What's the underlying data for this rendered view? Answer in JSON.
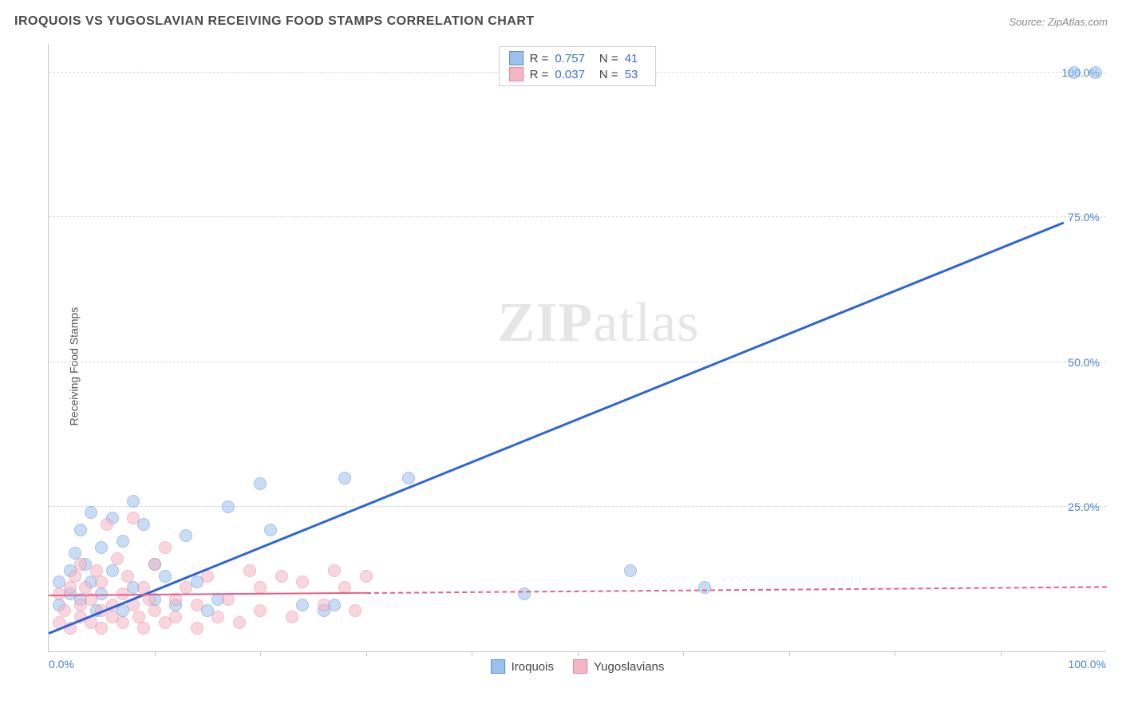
{
  "header": {
    "title": "IROQUOIS VS YUGOSLAVIAN RECEIVING FOOD STAMPS CORRELATION CHART",
    "source": "Source: ZipAtlas.com"
  },
  "watermark": {
    "bold": "ZIP",
    "rest": "atlas"
  },
  "chart": {
    "type": "scatter",
    "ylabel": "Receiving Food Stamps",
    "xlim": [
      0,
      100
    ],
    "ylim": [
      0,
      105
    ],
    "background_color": "#ffffff",
    "grid_color": "#d8d8d8",
    "yticks": [
      {
        "value": 25,
        "label": "25.0%"
      },
      {
        "value": 50,
        "label": "50.0%"
      },
      {
        "value": 75,
        "label": "75.0%"
      },
      {
        "value": 100,
        "label": "100.0%"
      }
    ],
    "xticks_minor": [
      10,
      20,
      30,
      40,
      50,
      60,
      70,
      80,
      90
    ],
    "xticks_labeled": [
      {
        "value": 0,
        "label": "0.0%"
      },
      {
        "value": 100,
        "label": "100.0%"
      }
    ],
    "marker_radius": 8,
    "marker_opacity": 0.55,
    "series": [
      {
        "name": "Iroquois",
        "color_fill": "#9cc0ee",
        "color_stroke": "#5a8fd6",
        "R": "0.757",
        "N": "41",
        "trend": {
          "x1": 0,
          "y1": 3,
          "x2": 96,
          "y2": 74,
          "color": "#2b65d9",
          "width": 2.5,
          "solid_until_x": 96
        },
        "points": [
          [
            1,
            8
          ],
          [
            1,
            12
          ],
          [
            2,
            14
          ],
          [
            2,
            10
          ],
          [
            2.5,
            17
          ],
          [
            3,
            9
          ],
          [
            3,
            21
          ],
          [
            3.5,
            15
          ],
          [
            4,
            24
          ],
          [
            4,
            12
          ],
          [
            4.5,
            7
          ],
          [
            5,
            18
          ],
          [
            5,
            10
          ],
          [
            6,
            23
          ],
          [
            6,
            14
          ],
          [
            7,
            19
          ],
          [
            7,
            7
          ],
          [
            8,
            26
          ],
          [
            8,
            11
          ],
          [
            9,
            22
          ],
          [
            10,
            9
          ],
          [
            10,
            15
          ],
          [
            11,
            13
          ],
          [
            12,
            8
          ],
          [
            13,
            20
          ],
          [
            14,
            12
          ],
          [
            15,
            7
          ],
          [
            16,
            9
          ],
          [
            17,
            25
          ],
          [
            20,
            29
          ],
          [
            21,
            21
          ],
          [
            24,
            8
          ],
          [
            26,
            7
          ],
          [
            27,
            8
          ],
          [
            28,
            30
          ],
          [
            34,
            30
          ],
          [
            45,
            10
          ],
          [
            55,
            14
          ],
          [
            62,
            11
          ],
          [
            97,
            100
          ],
          [
            99,
            100
          ]
        ]
      },
      {
        "name": "Yugoslavians",
        "color_fill": "#f5b6c4",
        "color_stroke": "#e583a0",
        "R": "0.037",
        "N": "53",
        "trend": {
          "x1": 0,
          "y1": 9.5,
          "x2": 100,
          "y2": 11,
          "color": "#e85f87",
          "width": 2,
          "solid_until_x": 30
        },
        "points": [
          [
            1,
            5
          ],
          [
            1,
            10
          ],
          [
            1.5,
            7
          ],
          [
            2,
            11
          ],
          [
            2,
            4
          ],
          [
            2.5,
            13
          ],
          [
            3,
            8
          ],
          [
            3,
            6
          ],
          [
            3,
            15
          ],
          [
            3.5,
            11
          ],
          [
            4,
            5
          ],
          [
            4,
            9
          ],
          [
            4.5,
            14
          ],
          [
            5,
            7
          ],
          [
            5,
            4
          ],
          [
            5,
            12
          ],
          [
            5.5,
            22
          ],
          [
            6,
            8
          ],
          [
            6,
            6
          ],
          [
            6.5,
            16
          ],
          [
            7,
            10
          ],
          [
            7,
            5
          ],
          [
            7.5,
            13
          ],
          [
            8,
            8
          ],
          [
            8,
            23
          ],
          [
            8.5,
            6
          ],
          [
            9,
            11
          ],
          [
            9,
            4
          ],
          [
            9.5,
            9
          ],
          [
            10,
            15
          ],
          [
            10,
            7
          ],
          [
            11,
            5
          ],
          [
            11,
            18
          ],
          [
            12,
            9
          ],
          [
            12,
            6
          ],
          [
            13,
            11
          ],
          [
            14,
            4
          ],
          [
            14,
            8
          ],
          [
            15,
            13
          ],
          [
            16,
            6
          ],
          [
            17,
            9
          ],
          [
            18,
            5
          ],
          [
            19,
            14
          ],
          [
            20,
            7
          ],
          [
            20,
            11
          ],
          [
            22,
            13
          ],
          [
            23,
            6
          ],
          [
            24,
            12
          ],
          [
            26,
            8
          ],
          [
            27,
            14
          ],
          [
            28,
            11
          ],
          [
            29,
            7
          ],
          [
            30,
            13
          ]
        ]
      }
    ],
    "legend_bottom": [
      {
        "label": "Iroquois",
        "fill": "#9cc0ee",
        "stroke": "#5a8fd6"
      },
      {
        "label": "Yugoslavians",
        "fill": "#f5b6c4",
        "stroke": "#e583a0"
      }
    ]
  }
}
